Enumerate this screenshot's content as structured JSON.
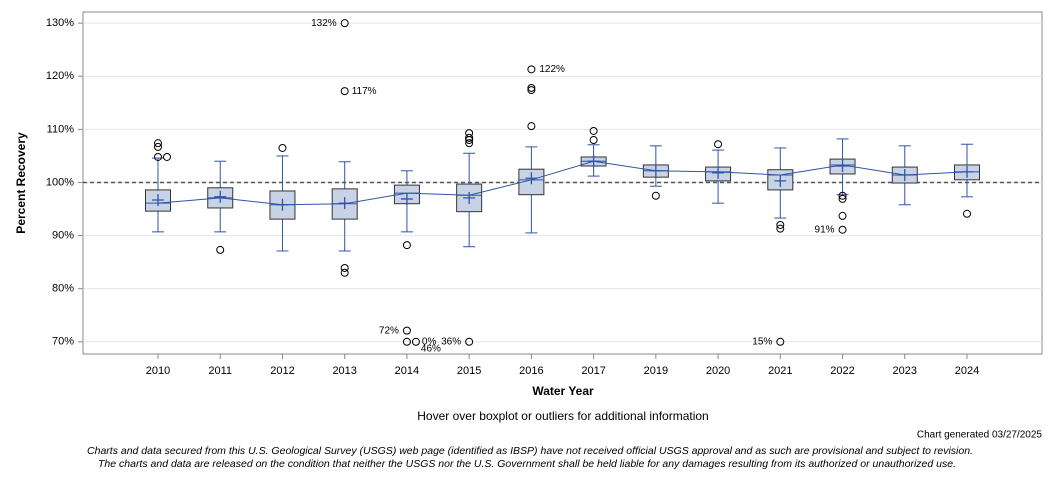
{
  "chart_data": {
    "type": "box",
    "y_label": "Percent Recovery",
    "x_label": "Water Year",
    "note": "Hover over boxplot or outliers for additional information",
    "generated": "Chart generated 03/27/2025",
    "disclaimer": [
      "Charts and data secured from this U.S. Geological Survey (USGS) web page (identified as IBSP) have not received official USGS approval and as such are provisional and subject to revision.",
      "The charts and data are released on the condition that neither the USGS nor the U.S. Government shall be held liable for any damages resulting from its authorized or unauthorized use."
    ],
    "categories": [
      "2010",
      "2011",
      "2012",
      "2013",
      "2014",
      "2015",
      "2016",
      "2017",
      "2019",
      "2020",
      "2021",
      "2022",
      "2023",
      "2024"
    ],
    "boxes": [
      {
        "whislo": 90.7,
        "q1": 94.6,
        "med": 96.1,
        "q3": 98.6,
        "whishi": 104.6,
        "mean": 96.7,
        "fliers": [
          107.4,
          106.7,
          104.8,
          104.8
        ]
      },
      {
        "whislo": 90.7,
        "q1": 95.2,
        "med": 97.1,
        "q3": 99.0,
        "whishi": 104.0,
        "mean": 97.3,
        "fliers": [
          87.3
        ]
      },
      {
        "whislo": 87.1,
        "q1": 93.1,
        "med": 95.8,
        "q3": 98.4,
        "whishi": 105.0,
        "mean": 95.8,
        "fliers": [
          106.5
        ]
      },
      {
        "whislo": 87.1,
        "q1": 93.1,
        "med": 96.0,
        "q3": 98.8,
        "whishi": 103.9,
        "mean": 96.1,
        "fliers": [
          130,
          117.2,
          83.9,
          83.0
        ]
      },
      {
        "whislo": 90.7,
        "q1": 96.0,
        "med": 98.0,
        "q3": 99.5,
        "whishi": 102.2,
        "mean": 96.9,
        "fliers": [
          88.2,
          72.1,
          70,
          70
        ]
      },
      {
        "whislo": 87.9,
        "q1": 94.5,
        "med": 97.6,
        "q3": 99.7,
        "whishi": 105.5,
        "mean": 97.1,
        "fliers": [
          109.3,
          108.4,
          108.0,
          107.4,
          70
        ]
      },
      {
        "whislo": 90.5,
        "q1": 97.7,
        "med": 100.5,
        "q3": 102.5,
        "whishi": 106.7,
        "mean": 100.8,
        "fliers": [
          121.3,
          117.8,
          117.4,
          110.6
        ]
      },
      {
        "whislo": 101.2,
        "q1": 103.1,
        "med": 104.0,
        "q3": 104.8,
        "whishi": 107.1,
        "mean": 104.0,
        "fliers": [
          109.7,
          108.0
        ]
      },
      {
        "whislo": 99.3,
        "q1": 101.0,
        "med": 102.2,
        "q3": 103.3,
        "whishi": 106.9,
        "mean": 102.2,
        "fliers": [
          97.5
        ]
      },
      {
        "whislo": 96.1,
        "q1": 100.3,
        "med": 102.0,
        "q3": 102.9,
        "whishi": 106.1,
        "mean": 101.8,
        "fliers": [
          107.2
        ]
      },
      {
        "whislo": 93.3,
        "q1": 98.6,
        "med": 101.4,
        "q3": 102.4,
        "whishi": 106.5,
        "mean": 100.3,
        "fliers": [
          92.0,
          91.3,
          70
        ]
      },
      {
        "whislo": 97.7,
        "q1": 101.6,
        "med": 103.3,
        "q3": 104.4,
        "whishi": 108.2,
        "mean": 103.1,
        "fliers": [
          97.5,
          96.9,
          93.7,
          91.1
        ]
      },
      {
        "whislo": 95.8,
        "q1": 99.9,
        "med": 101.4,
        "q3": 102.9,
        "whishi": 106.9,
        "mean": 101.4,
        "fliers": []
      },
      {
        "whislo": 97.3,
        "q1": 100.5,
        "med": 102.0,
        "q3": 103.3,
        "whishi": 107.2,
        "mean": 102.0,
        "fliers": [
          94.1
        ]
      }
    ],
    "annotations": [
      "132%",
      "117%",
      "122%",
      "72%",
      "0%",
      "36%",
      "46%",
      "15%",
      "91%"
    ],
    "ref_line": 100,
    "box_color": "#c8d4e6",
    "line_color": "#2f54a8",
    "ylim": [
      67.7,
      132.1
    ],
    "yticks": [
      {
        "value": 70,
        "label": "70%"
      },
      {
        "value": 80,
        "label": "80%"
      },
      {
        "value": 90,
        "label": "90%"
      },
      {
        "value": 100,
        "label": "100%"
      },
      {
        "value": 110,
        "label": "110%"
      },
      {
        "value": 120,
        "label": "120%"
      },
      {
        "value": 130,
        "label": "130%"
      }
    ],
    "grid": true
  }
}
